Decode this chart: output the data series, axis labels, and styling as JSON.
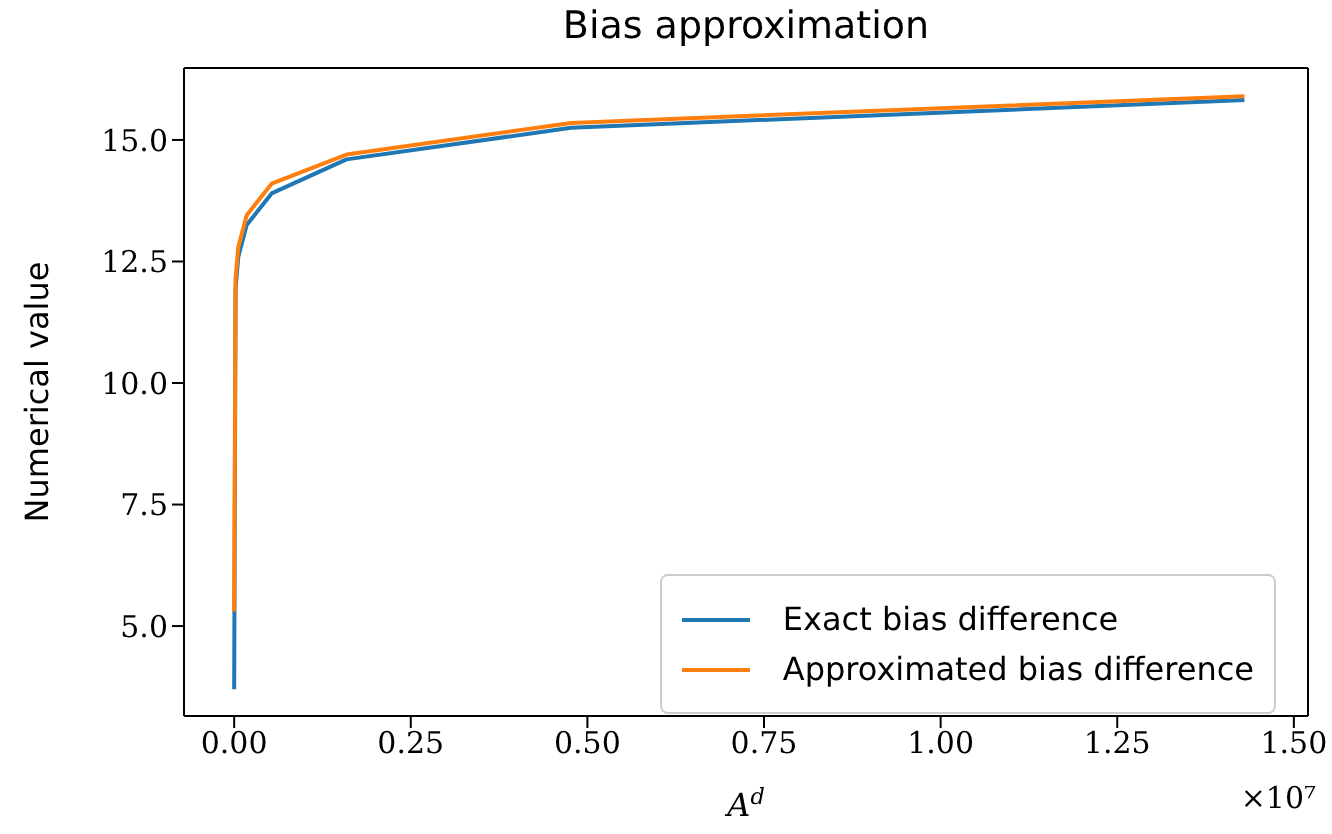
{
  "chart_data": {
    "type": "line",
    "title": "Bias approximation",
    "xlabel": "A$^{d}$",
    "ylabel": "Numerical value",
    "annotations": [
      "×10⁷"
    ],
    "series": [
      {
        "name": "Exact bias difference",
        "color": "#1f77b4",
        "x": [
          1e-07,
          0.002,
          0.0059,
          0.0177,
          0.053,
          0.159,
          0.477,
          1.43
        ],
        "values": [
          3.7,
          11.95,
          12.6,
          13.25,
          13.9,
          14.6,
          15.25,
          15.82
        ]
      },
      {
        "name": "Approximated bias difference",
        "color": "#ff7f0e",
        "x": [
          1e-07,
          0.002,
          0.0059,
          0.0177,
          0.053,
          0.159,
          0.477,
          1.43
        ],
        "values": [
          5.3,
          12.15,
          12.8,
          13.45,
          14.1,
          14.7,
          15.35,
          15.9
        ]
      }
    ],
    "xlim": [
      -0.071,
      1.52
    ],
    "xticks": [
      {
        "value": 0,
        "label": "0.00"
      },
      {
        "value": 0.25,
        "label": "0.25"
      },
      {
        "value": 0.5,
        "label": "0.50"
      },
      {
        "value": 0.75,
        "label": "0.75"
      },
      {
        "value": 1,
        "label": "1.00"
      },
      {
        "value": 1.25,
        "label": "1.25"
      },
      {
        "value": 1.5,
        "label": "1.50"
      }
    ],
    "ylim": [
      3.15,
      16.48
    ],
    "yticks": [
      {
        "value": 5,
        "label": "5.0"
      },
      {
        "value": 7.5,
        "label": "7.5"
      },
      {
        "value": 10,
        "label": "10.0"
      },
      {
        "value": 12.5,
        "label": "12.5"
      },
      {
        "value": 15,
        "label": "15.0"
      }
    ],
    "grid": false,
    "legend": "bottom right",
    "marker": "none",
    "line_style": "solid"
  }
}
